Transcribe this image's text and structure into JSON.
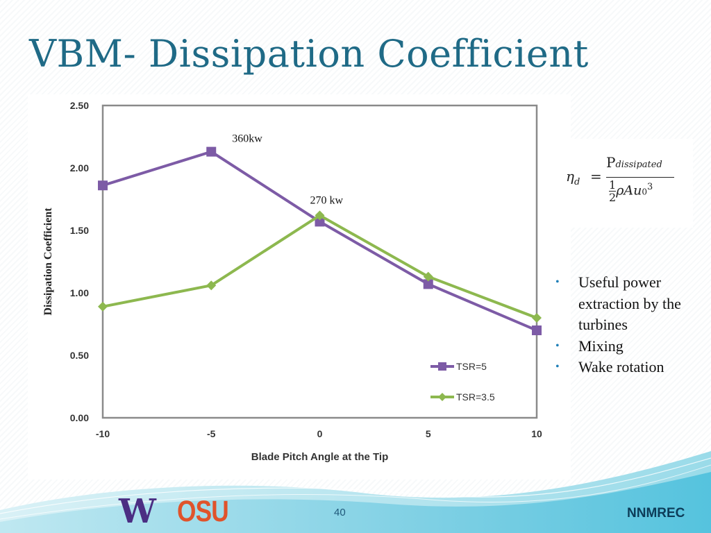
{
  "slide": {
    "title": "VBM- Dissipation Coefficient",
    "page_number": "40",
    "brand": "NNMREC",
    "logos": [
      "W",
      "OSU"
    ]
  },
  "formula": {
    "lhs": "η",
    "lhs_sub": "d",
    "equals": "=",
    "numerator": "P",
    "numerator_sub": "dissipated",
    "half_num": "1",
    "half_den": "2",
    "rho_A_u": "ρAu",
    "u_sub": "0",
    "u_sup": "3"
  },
  "bullets": [
    "Useful power extraction by the turbines",
    "Mixing",
    "Wake rotation"
  ],
  "colors": {
    "title": "#1f6a86",
    "series_tsr5": "#7d5ba6",
    "series_tsr35": "#8db84f",
    "bullet": "#1f7fb8"
  },
  "chart_data": {
    "type": "line",
    "title": "",
    "xlabel": "Blade Pitch Angle at the Tip",
    "ylabel": "Dissipation Coefficient",
    "x": [
      -10,
      -5,
      0,
      5,
      10
    ],
    "x_tick_labels": [
      "-10",
      "-5",
      "0",
      "5",
      "10"
    ],
    "y_tick_labels": [
      "0.00",
      "0.50",
      "1.00",
      "1.50",
      "2.00",
      "2.50"
    ],
    "xlim": [
      -10,
      10
    ],
    "ylim": [
      0,
      2.5
    ],
    "grid": false,
    "legend_position": "bottom-right",
    "series": [
      {
        "name": "TSR=5",
        "marker": "square",
        "values": [
          1.86,
          2.13,
          1.57,
          1.07,
          0.7
        ]
      },
      {
        "name": "TSR=3.5",
        "marker": "diamond",
        "values": [
          0.89,
          1.06,
          1.62,
          1.13,
          0.8
        ]
      }
    ],
    "annotations": [
      {
        "text": "360kw",
        "x": -5,
        "y": 2.13
      },
      {
        "text": "270 kw",
        "x": 0,
        "y": 1.62
      }
    ]
  }
}
